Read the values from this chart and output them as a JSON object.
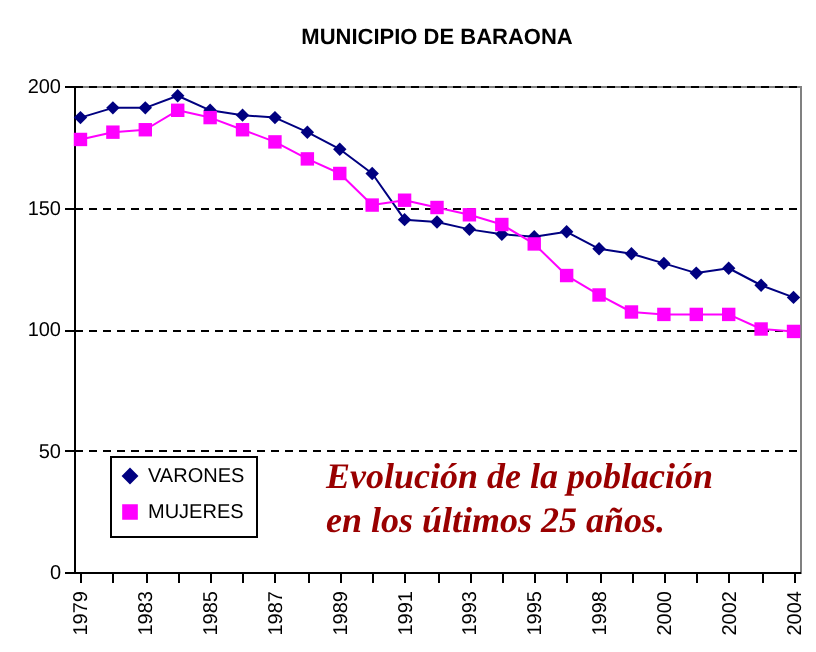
{
  "chart_data": {
    "type": "line",
    "title": "MUNICIPIO DE BARAONA",
    "categories": [
      "1979",
      null,
      "1983",
      null,
      "1985",
      null,
      "1987",
      null,
      "1989",
      null,
      "1991",
      null,
      "1993",
      null,
      "1995",
      null,
      "1998",
      null,
      "2000",
      null,
      "2002",
      null,
      "2004"
    ],
    "series": [
      {
        "name": "VARONES",
        "color": "#000080",
        "marker": "diamond",
        "values": [
          187,
          191,
          191,
          196,
          190,
          188,
          187,
          181,
          174,
          164,
          145,
          144,
          141,
          139,
          138,
          140,
          133,
          131,
          127,
          123,
          125,
          118,
          113
        ]
      },
      {
        "name": "MUJERES",
        "color": "#ff00ff",
        "marker": "square",
        "values": [
          178,
          181,
          182,
          190,
          187,
          182,
          177,
          170,
          164,
          151,
          153,
          150,
          147,
          143,
          135,
          122,
          114,
          107,
          106,
          106,
          106,
          100,
          99
        ]
      }
    ],
    "ylim": [
      0,
      200
    ],
    "yticks": [
      0,
      50,
      100,
      150,
      200
    ],
    "grid": "y",
    "legend": "bottom left",
    "line_style": "solid",
    "annotations": [
      "Evolución de la población",
      "en los últimos 25 años."
    ]
  }
}
